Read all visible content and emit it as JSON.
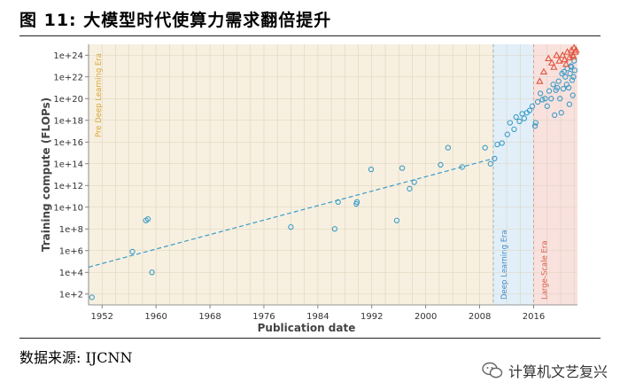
{
  "figure": {
    "title": "图 11:  大模型时代使算力需求翻倍提升",
    "source": "数据来源:  IJCNN",
    "watermark": "计算机文艺复兴",
    "watermark_icon": "wechat-icon"
  },
  "chart_data": {
    "type": "scatter",
    "title": "",
    "xlabel": "Publication date",
    "ylabel": "Training compute (FLOPs)",
    "xlim": [
      1950,
      2022.5
    ],
    "ylim": [
      10.0,
      1e+25
    ],
    "yscale": "log",
    "x_ticks": [
      1952,
      1960,
      1968,
      1976,
      1984,
      1992,
      2000,
      2008,
      2016
    ],
    "y_ticks": [
      {
        "value": 100.0,
        "label": "1e+2"
      },
      {
        "value": 10000.0,
        "label": "1e+4"
      },
      {
        "value": 1000000.0,
        "label": "1e+6"
      },
      {
        "value": 100000000.0,
        "label": "1e+8"
      },
      {
        "value": 10000000000.0,
        "label": "1e+10"
      },
      {
        "value": 1000000000000.0,
        "label": "1e+12"
      },
      {
        "value": 100000000000000.0,
        "label": "1e+14"
      },
      {
        "value": 1e+16,
        "label": "1e+16"
      },
      {
        "value": 1e+18,
        "label": "1e+18"
      },
      {
        "value": 1e+20,
        "label": "1e+20"
      },
      {
        "value": 1e+22,
        "label": "1e+22"
      },
      {
        "value": 1e+24,
        "label": "1e+24"
      }
    ],
    "grid": true,
    "eras": [
      {
        "label": "Pre Deep Learning Era",
        "start": 1950,
        "end": 2010,
        "color": "#f7f0e0",
        "text_color": "#d8a530"
      },
      {
        "label": "Deep Learning Era",
        "start": 2010,
        "end": 2016,
        "color": "#e2eff9",
        "text_color": "#3a86c6"
      },
      {
        "label": "Large-Scale Era",
        "start": 2016,
        "end": 2022.5,
        "color": "#f9e1de",
        "text_color": "#d8553f"
      }
    ],
    "trend": {
      "x": [
        1950,
        2010
      ],
      "y": [
        30000.0,
        300000000000000.0
      ],
      "color": "#3a9cc8"
    },
    "series": [
      {
        "marker": "circle",
        "color": "#3a9cc8",
        "points": [
          [
            1950.5,
            50.0
          ],
          [
            1956.5,
            800000.0
          ],
          [
            1958.5,
            600000000.0
          ],
          [
            1958.8,
            800000000.0
          ],
          [
            1959.4,
            10000.0
          ],
          [
            1980,
            150000000.0
          ],
          [
            1986.5,
            100000000.0
          ],
          [
            1987,
            30000000000.0
          ],
          [
            1989.7,
            20000000000.0
          ],
          [
            1989.8,
            30000000000.0
          ],
          [
            1991.9,
            30000000000000.0
          ],
          [
            1995.7,
            600000000.0
          ],
          [
            1996.5,
            40000000000000.0
          ],
          [
            1997.6,
            500000000000.0
          ],
          [
            1998.3,
            2000000000000.0
          ],
          [
            2002.2,
            80000000000000.0
          ],
          [
            2003.3,
            3000000000000000.0
          ],
          [
            2005.4,
            50000000000000.0
          ],
          [
            2008.8,
            3000000000000000.0
          ],
          [
            2009.6,
            100000000000000.0
          ],
          [
            2010.2,
            300000000000000.0
          ],
          [
            2010.6,
            6000000000000000.0
          ],
          [
            2011.3,
            8000000000000000.0
          ],
          [
            2012.1,
            5e+16
          ],
          [
            2012.5,
            6e+17
          ],
          [
            2013.1,
            1.5e+17
          ],
          [
            2013.4,
            2e+18
          ],
          [
            2013.9,
            8e+17
          ],
          [
            2014.3,
            4e+18
          ],
          [
            2014.6,
            1.5e+18
          ],
          [
            2015,
            5e+18
          ],
          [
            2015.4,
            8e+18
          ],
          [
            2015.8,
            2e+19
          ],
          [
            2016.2,
            3e+17
          ],
          [
            2016.3,
            6e+17
          ],
          [
            2016.6,
            5e+19
          ],
          [
            2017,
            3e+20
          ],
          [
            2017.3,
            8e+19
          ],
          [
            2017.7,
            1e+20
          ],
          [
            2018,
            2e+19
          ],
          [
            2018.3,
            5e+20
          ],
          [
            2018.6,
            1e+20
          ],
          [
            2018.9,
            2e+21
          ],
          [
            2019.1,
            3e+18
          ],
          [
            2019.3,
            6e+20
          ],
          [
            2019.5,
            1e+21
          ],
          [
            2019.7,
            4e+21
          ],
          [
            2019.9,
            1e+20
          ],
          [
            2020.1,
            5e+18
          ],
          [
            2020.2,
            2e+22
          ],
          [
            2020.4,
            8e+20
          ],
          [
            2020.5,
            3e+22
          ],
          [
            2020.7,
            1e+22
          ],
          [
            2020.9,
            2e+21
          ],
          [
            2021,
            6e+22
          ],
          [
            2021.2,
            1e+21
          ],
          [
            2021.3,
            3e+19
          ],
          [
            2021.4,
            2e+22
          ],
          [
            2021.6,
            8e+22
          ],
          [
            2021.7,
            5e+21
          ],
          [
            2021.8,
            2e+20
          ],
          [
            2021.9,
            1e+22
          ],
          [
            2022,
            3e+23
          ],
          [
            2022.1,
            4e+22
          ],
          [
            2021.5,
            1e+23
          ]
        ]
      },
      {
        "marker": "triangle",
        "color": "#e0553f",
        "points": [
          [
            2016.9,
            4e+21
          ],
          [
            2017.5,
            3e+22
          ],
          [
            2018.2,
            5e+23
          ],
          [
            2018.7,
            2e+23
          ],
          [
            2019.0,
            8e+22
          ],
          [
            2019.4,
            1e+24
          ],
          [
            2019.8,
            3e+23
          ],
          [
            2020.3,
            1e+24
          ],
          [
            2020.6,
            4e+23
          ],
          [
            2021.0,
            2e+24
          ],
          [
            2021.3,
            6e+23
          ],
          [
            2021.6,
            3e+24
          ],
          [
            2021.8,
            1e+24
          ],
          [
            2022.0,
            5e+24
          ],
          [
            2022.2,
            2e+24
          ],
          [
            2020.8,
            1.5e+23
          ],
          [
            2021.9,
            8e+23
          ],
          [
            2022.3,
            3e+24
          ]
        ]
      }
    ]
  }
}
